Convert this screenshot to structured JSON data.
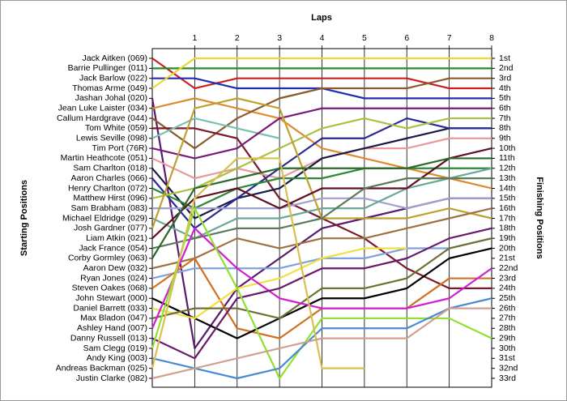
{
  "chart_data": {
    "type": "line",
    "title": "Laps",
    "ylabel": "Starting Positions",
    "y2label": "Finishing Positions",
    "x": [
      0,
      1,
      2,
      3,
      4,
      5,
      6,
      7,
      8
    ],
    "xlim": [
      0,
      8
    ],
    "xticks": [
      1,
      2,
      3,
      4,
      5,
      6,
      7,
      8
    ],
    "ylim": [
      1,
      33
    ],
    "y_inverted": true,
    "vertical_grid": true,
    "y2lim": [
      1,
      33
    ],
    "y2ticks": [
      {
        "value": 1,
        "label": "1st"
      },
      {
        "value": 2,
        "label": "2nd"
      },
      {
        "value": 3,
        "label": "3rd"
      },
      {
        "value": 4,
        "label": "4th"
      },
      {
        "value": 5,
        "label": "5th"
      },
      {
        "value": 6,
        "label": "6th"
      },
      {
        "value": 7,
        "label": "7th"
      },
      {
        "value": 8,
        "label": "8th"
      },
      {
        "value": 9,
        "label": "9th"
      },
      {
        "value": 10,
        "label": "10th"
      },
      {
        "value": 11,
        "label": "11th"
      },
      {
        "value": 12,
        "label": "12th"
      },
      {
        "value": 13,
        "label": "13th"
      },
      {
        "value": 14,
        "label": "14th"
      },
      {
        "value": 15,
        "label": "15th"
      },
      {
        "value": 16,
        "label": "16th"
      },
      {
        "value": 17,
        "label": "17th"
      },
      {
        "value": 18,
        "label": "18th"
      },
      {
        "value": 19,
        "label": "19th"
      },
      {
        "value": 20,
        "label": "20th"
      },
      {
        "value": 21,
        "label": "21st"
      },
      {
        "value": 22,
        "label": "22nd"
      },
      {
        "value": 23,
        "label": "23rd"
      },
      {
        "value": 24,
        "label": "24th"
      },
      {
        "value": 25,
        "label": "25th"
      },
      {
        "value": 26,
        "label": "26th"
      },
      {
        "value": 27,
        "label": "27th"
      },
      {
        "value": 28,
        "label": "28th"
      },
      {
        "value": 29,
        "label": "29th"
      },
      {
        "value": 30,
        "label": "30th"
      },
      {
        "value": 31,
        "label": "31st"
      },
      {
        "value": 32,
        "label": "32nd"
      },
      {
        "value": 33,
        "label": "33rd"
      }
    ],
    "series": [
      {
        "name": "Jack Aitken (069)",
        "color": "#cc1f1f",
        "values": [
          1,
          4,
          3,
          3,
          3,
          3,
          3,
          4,
          4
        ]
      },
      {
        "name": "Barrie Pullinger (011)",
        "color": "#2a8a2a",
        "values": [
          2,
          2,
          2,
          2,
          2,
          2,
          2,
          2,
          2
        ]
      },
      {
        "name": "Jack Barlow (022)",
        "color": "#1f2fb0",
        "values": [
          3,
          3,
          4,
          4,
          4,
          5,
          5,
          5,
          5
        ]
      },
      {
        "name": "Thomas Arme (049)",
        "color": "#e8d830",
        "values": [
          4,
          1,
          1,
          1,
          1,
          1,
          1,
          1,
          1
        ]
      },
      {
        "name": "Jashan Johal (020)",
        "color": "#5a1a6e",
        "values": [
          5,
          30,
          24,
          21,
          18,
          17,
          16,
          15,
          15
        ]
      },
      {
        "name": "Jean Luke Laister (034)",
        "color": "#e08a30",
        "values": [
          6,
          5,
          6,
          7,
          10,
          11,
          12,
          13,
          14
        ]
      },
      {
        "name": "Callum Hardgrave (044)",
        "color": "#8b5a2b",
        "values": [
          7,
          10,
          7,
          5,
          4,
          4,
          4,
          3,
          3
        ]
      },
      {
        "name": "Tom White (059)",
        "color": "#7a1a2a",
        "values": [
          8,
          8,
          9,
          15,
          17,
          19,
          22,
          24,
          24
        ]
      },
      {
        "name": "Lewis Seville (098)",
        "color": "#7ac0b0",
        "values": [
          9,
          7,
          8,
          9,
          null,
          null,
          null,
          null,
          null
        ]
      },
      {
        "name": "Tim Port (76R)",
        "color": "#7a1a7a",
        "values": [
          10,
          11,
          10,
          7,
          6,
          6,
          6,
          6,
          6
        ]
      },
      {
        "name": "Martin Heathcote (051)",
        "color": "#e89a9a",
        "values": [
          11,
          13,
          12,
          13,
          11,
          10,
          10,
          9,
          9
        ]
      },
      {
        "name": "Sam Charlton (018)",
        "color": "#1a1a4a",
        "values": [
          12,
          17,
          15,
          14,
          11,
          10,
          9,
          8,
          8
        ]
      },
      {
        "name": "Aaron Charles (066)",
        "color": "#2a2a90",
        "values": [
          13,
          18,
          15,
          12,
          9,
          9,
          7,
          8,
          8
        ]
      },
      {
        "name": "Henry Charlton (072)",
        "color": "#2a8a3a",
        "values": [
          14,
          16,
          14,
          13,
          13,
          12,
          12,
          12,
          12
        ]
      },
      {
        "name": "Matthew Hirst (096)",
        "color": "#aac040",
        "values": [
          15,
          14,
          12,
          10,
          8,
          7,
          8,
          7,
          7
        ]
      },
      {
        "name": "Sam Brabham (083)",
        "color": "#a0a0d0",
        "values": [
          16,
          16,
          16,
          16,
          15,
          15,
          16,
          15,
          15
        ]
      },
      {
        "name": "Michael Eldridge (029)",
        "color": "#6aa898",
        "values": [
          17,
          19,
          17,
          17,
          16,
          16,
          14,
          13,
          12
        ]
      },
      {
        "name": "Josh Gardner (077)",
        "color": "#c0a030",
        "values": [
          18,
          6,
          5,
          6,
          17,
          17,
          17,
          16,
          17
        ]
      },
      {
        "name": "Liam Atkin (021)",
        "color": "#601020",
        "values": [
          19,
          15,
          14,
          16,
          14,
          14,
          14,
          11,
          10
        ]
      },
      {
        "name": "Jack France (054)",
        "color": "#5a7a5a",
        "values": [
          20,
          19,
          18,
          18,
          17,
          14,
          13,
          13,
          13
        ]
      },
      {
        "name": "Corby Gormley (063)",
        "color": "#2a6a2a",
        "values": [
          21,
          14,
          13,
          12,
          12,
          12,
          12,
          11,
          11
        ]
      },
      {
        "name": "Aaron Dew (032)",
        "color": "#a07040",
        "values": [
          22,
          21,
          19,
          20,
          19,
          19,
          18,
          17,
          16
        ]
      },
      {
        "name": "Ryan Jones (024)",
        "color": "#80a0e0",
        "values": [
          23,
          22,
          22,
          22,
          21,
          21,
          20,
          20,
          19
        ]
      },
      {
        "name": "Steven Oakes (068)",
        "color": "#d07020",
        "values": [
          24,
          21,
          28,
          29,
          26,
          26,
          26,
          23,
          23
        ]
      },
      {
        "name": "John Stewart (000)",
        "color": "#000000",
        "values": [
          25,
          27,
          29,
          27,
          25,
          25,
          24,
          21,
          20
        ]
      },
      {
        "name": "Daniel Barrett (033)",
        "color": "#f0e040",
        "values": [
          26,
          27,
          24,
          23,
          21,
          20,
          20,
          null,
          null
        ]
      },
      {
        "name": "Max Bladon (047)",
        "color": "#707030",
        "values": [
          27,
          26,
          26,
          27,
          24,
          24,
          23,
          20,
          19
        ]
      },
      {
        "name": "Ashley Hand (007)",
        "color": "#d020d0",
        "values": [
          28,
          18,
          22,
          25,
          26,
          26,
          26,
          25,
          22
        ]
      },
      {
        "name": "Danny Russell (013)",
        "color": "#6a1a6a",
        "values": [
          29,
          31,
          25,
          24,
          22,
          22,
          21,
          19,
          18
        ]
      },
      {
        "name": "Sam Clegg (019)",
        "color": "#90e030",
        "values": [
          30,
          16,
          24,
          33,
          27,
          27,
          27,
          27,
          29
        ]
      },
      {
        "name": "Andy King (003)",
        "color": "#4a8ad0",
        "values": [
          31,
          32,
          33,
          32,
          28,
          28,
          28,
          26,
          25
        ]
      },
      {
        "name": "Andreas Backman (025)",
        "color": "#d8c050",
        "values": [
          32,
          15,
          11,
          11,
          32,
          32,
          null,
          null,
          null
        ]
      },
      {
        "name": "Justin Clarke (082)",
        "color": "#d0a090",
        "values": [
          33,
          32,
          31,
          30,
          29,
          29,
          29,
          26,
          26
        ]
      }
    ]
  }
}
